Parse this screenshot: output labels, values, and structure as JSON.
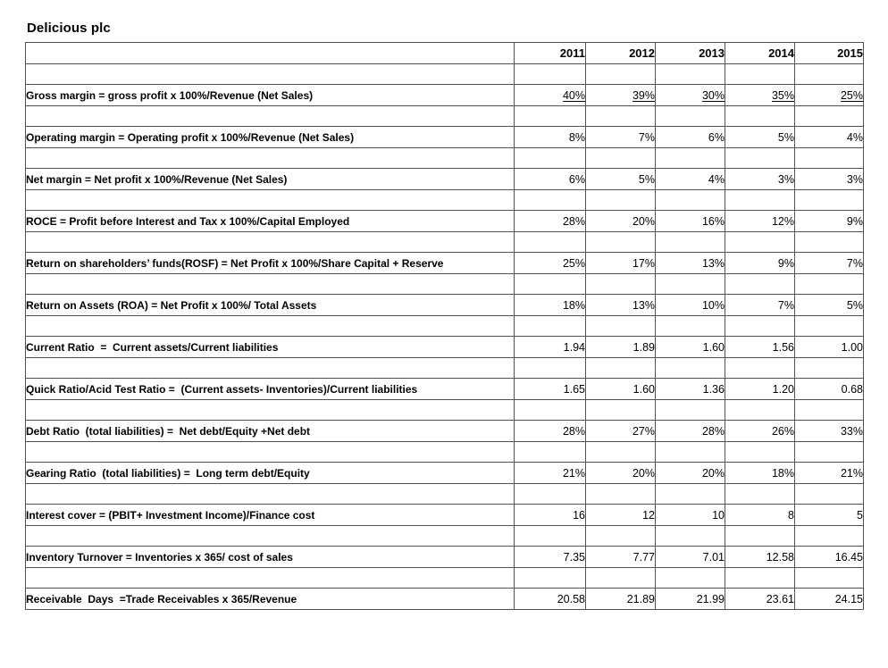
{
  "title": "Delicious plc",
  "colors": {
    "border": "#525252",
    "text": "#000000",
    "background": "#ffffff"
  },
  "table": {
    "years": [
      "2011",
      "2012",
      "2013",
      "2014",
      "2015"
    ],
    "rows": [
      {
        "label": "Gross margin = gross profit x 100%/Revenue (Net Sales)",
        "values": [
          "40%",
          "39%",
          "30%",
          "35%",
          "25%"
        ],
        "underlined": true
      },
      {
        "label": "Operating margin = Operating profit x 100%/Revenue (Net Sales)",
        "values": [
          "8%",
          "7%",
          "6%",
          "5%",
          "4%"
        ],
        "underlined": false
      },
      {
        "label": "Net margin = Net profit x 100%/Revenue (Net Sales)",
        "values": [
          "6%",
          "5%",
          "4%",
          "3%",
          "3%"
        ],
        "underlined": false
      },
      {
        "label": "ROCE = Profit before Interest and Tax x 100%/Capital Employed",
        "values": [
          "28%",
          "20%",
          "16%",
          "12%",
          "9%"
        ],
        "underlined": false
      },
      {
        "label": "Return on shareholders’ funds(ROSF) = Net Profit x 100%/Share Capital + Reserve",
        "values": [
          "25%",
          "17%",
          "13%",
          "9%",
          "7%"
        ],
        "underlined": false
      },
      {
        "label": "Return on Assets (ROA) = Net Profit x 100%/ Total Assets",
        "values": [
          "18%",
          "13%",
          "10%",
          "7%",
          "5%"
        ],
        "underlined": false
      },
      {
        "label": "Current Ratio  =  Current assets/Current liabilities",
        "values": [
          "1.94",
          "1.89",
          "1.60",
          "1.56",
          "1.00"
        ],
        "underlined": false
      },
      {
        "label": "Quick Ratio/Acid Test Ratio =  (Current assets- Inventories)/Current liabilities",
        "values": [
          "1.65",
          "1.60",
          "1.36",
          "1.20",
          "0.68"
        ],
        "underlined": false
      },
      {
        "label": "Debt Ratio  (total liabilities) =  Net debt/Equity +Net debt",
        "values": [
          "28%",
          "27%",
          "28%",
          "26%",
          "33%"
        ],
        "underlined": false
      },
      {
        "label": "Gearing Ratio  (total liabilities) =  Long term debt/Equity",
        "values": [
          "21%",
          "20%",
          "20%",
          "18%",
          "21%"
        ],
        "underlined": false
      },
      {
        "label": "Interest cover = (PBIT+ Investment Income)/Finance cost",
        "values": [
          "16",
          "12",
          "10",
          "8",
          "5"
        ],
        "underlined": false
      },
      {
        "label": "Inventory Turnover = Inventories x 365/ cost of sales",
        "values": [
          "7.35",
          "7.77",
          "7.01",
          "12.58",
          "16.45"
        ],
        "underlined": false
      },
      {
        "label": "Receivable  Days  =Trade Receivables x 365/Revenue",
        "values": [
          "20.58",
          "21.89",
          "21.99",
          "23.61",
          "24.15"
        ],
        "underlined": false
      }
    ]
  }
}
